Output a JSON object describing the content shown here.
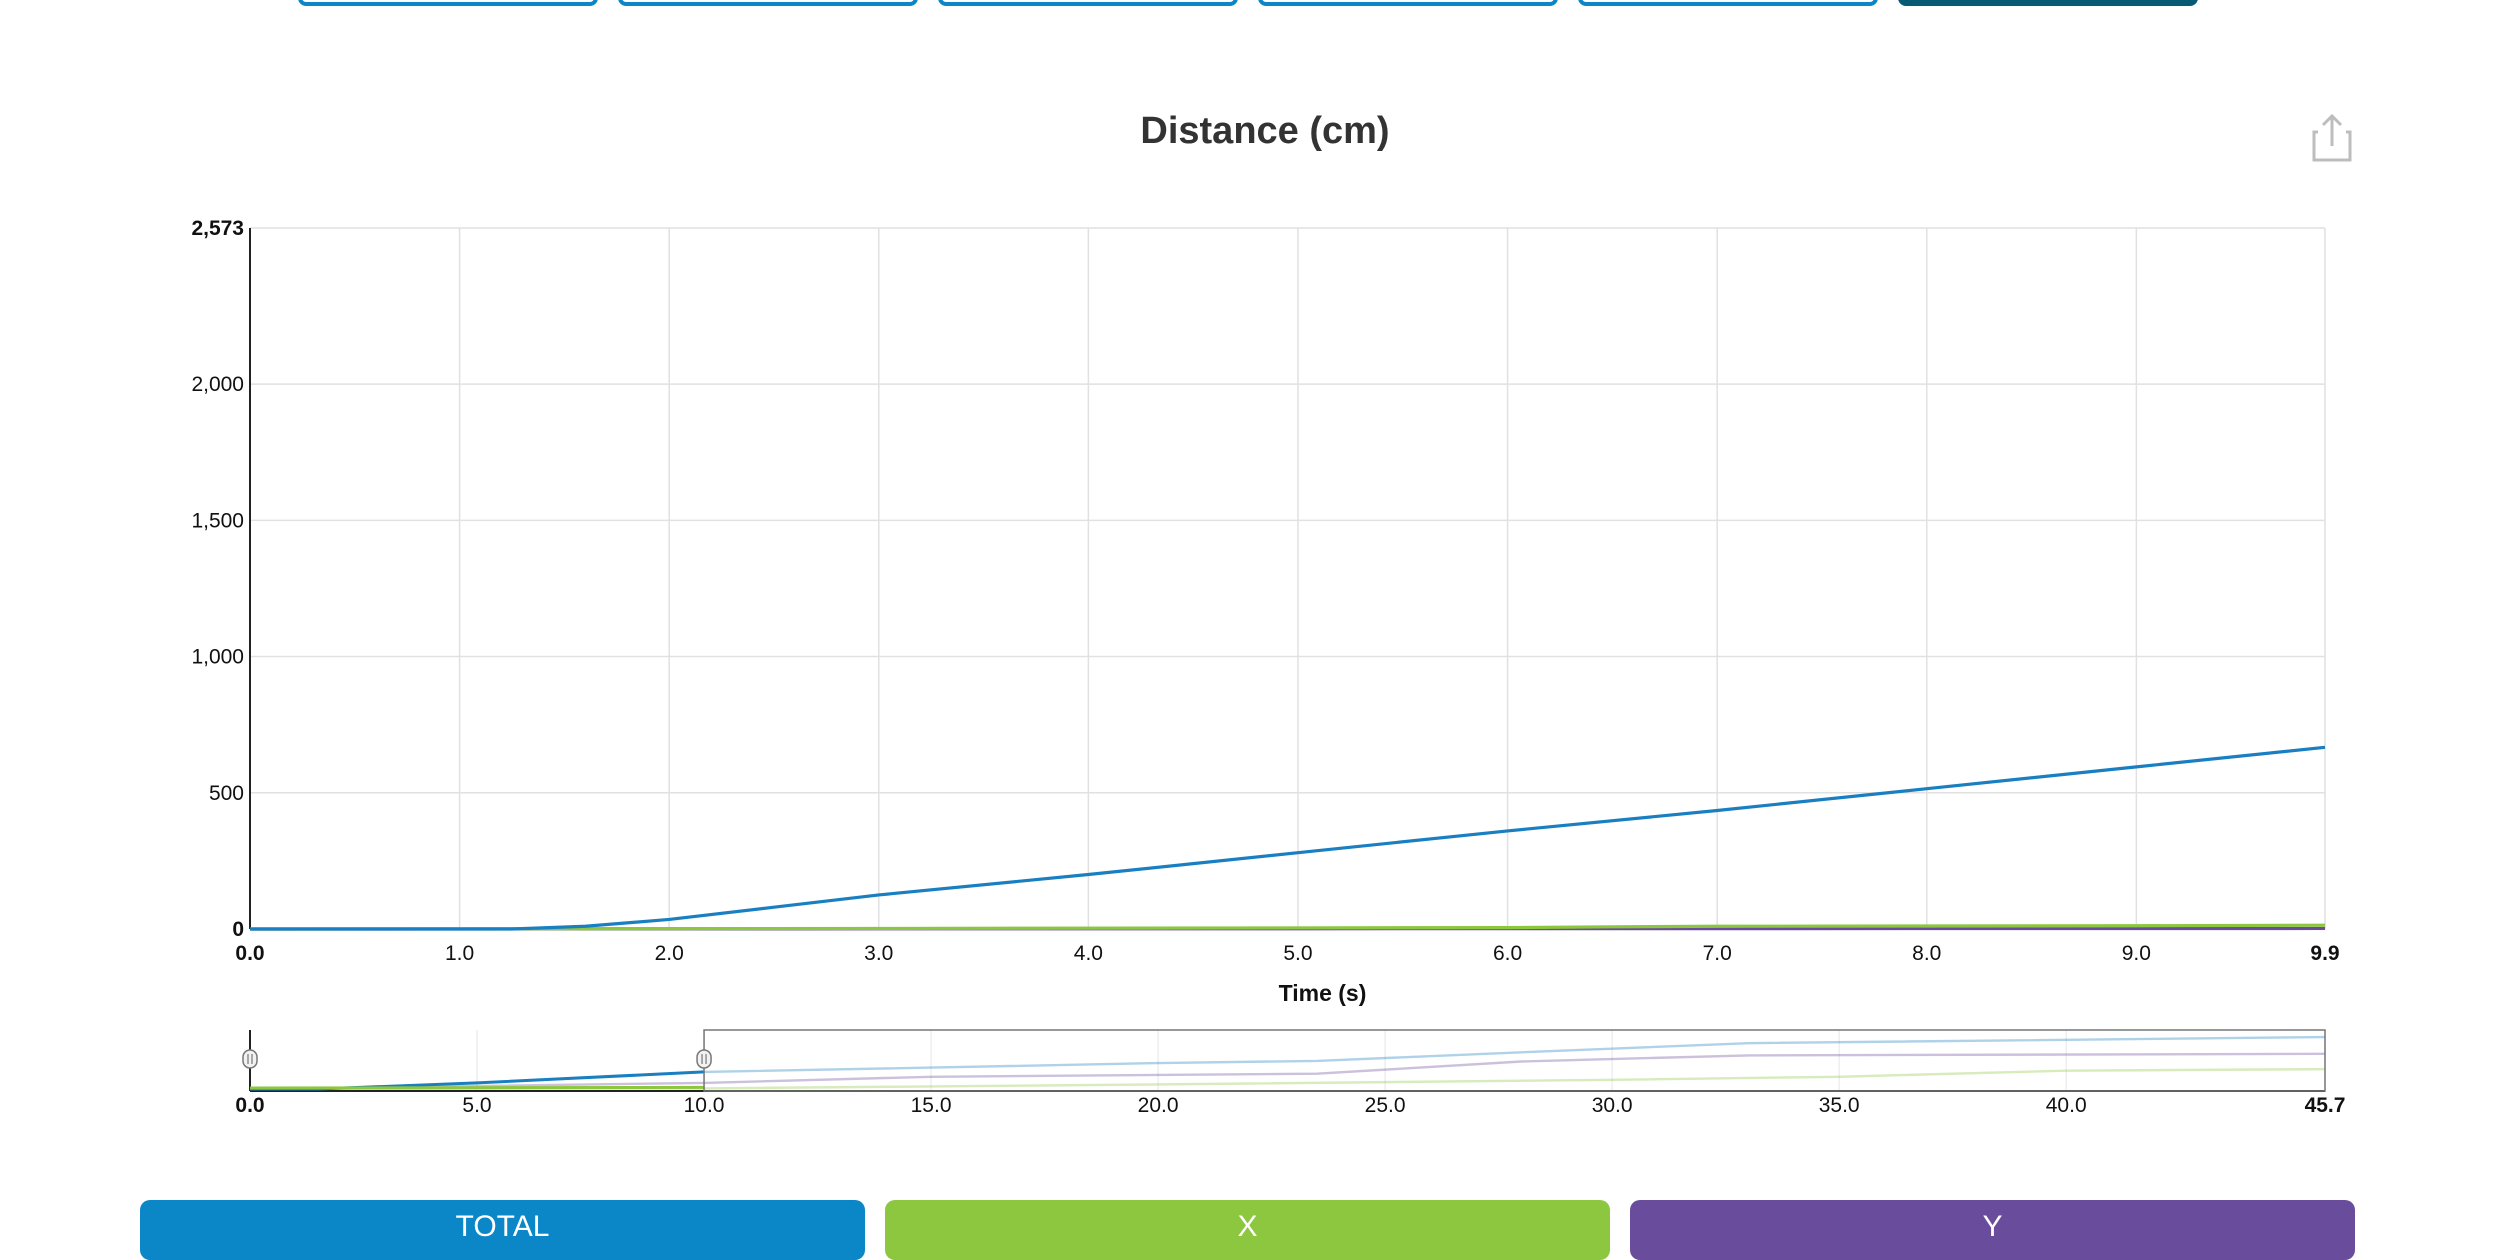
{
  "top_tabs": [
    {
      "label": "",
      "active": false
    },
    {
      "label": "",
      "active": false
    },
    {
      "label": "",
      "active": false
    },
    {
      "label": "",
      "active": false
    },
    {
      "label": "",
      "active": false
    },
    {
      "label": "",
      "active": true
    }
  ],
  "share_icon": "share-icon",
  "chart_data": {
    "type": "line",
    "title": "Distance (cm)",
    "xlabel": "Time (s)",
    "ylabel": "",
    "xlim": [
      0.0,
      9.9
    ],
    "ylim": [
      0,
      2573
    ],
    "x_ticks": [
      "0.0",
      "1.0",
      "2.0",
      "3.0",
      "4.0",
      "5.0",
      "6.0",
      "7.0",
      "8.0",
      "9.0",
      "9.9"
    ],
    "y_ticks": [
      "0",
      "500",
      "1,000",
      "1,500",
      "2,000",
      "2,573"
    ],
    "grid": true,
    "series": [
      {
        "color": "#1a7fc1",
        "x": [
          0.0,
          1.0,
          1.25,
          1.6,
          2.0,
          2.5,
          3.0,
          4.0,
          5.0,
          6.0,
          7.0,
          8.0,
          9.0,
          9.9
        ],
        "y": [
          0,
          0,
          0,
          10,
          35,
          80,
          125,
          200,
          280,
          360,
          435,
          515,
          595,
          667
        ]
      },
      {
        "color": "#8dc63f",
        "x": [
          0.0,
          3.0,
          6.0,
          6.5,
          7.0,
          8.0,
          9.0,
          9.9
        ],
        "y": [
          0,
          2,
          5,
          8,
          10,
          11,
          12,
          14
        ]
      },
      {
        "color": "#6a4c9c",
        "x": [
          0.0,
          5.0,
          9.9
        ],
        "y": [
          0,
          1,
          2
        ]
      }
    ],
    "navigator": {
      "xlim": [
        0.0,
        45.7
      ],
      "x_ticks": [
        "0.0",
        "5.0",
        "10.0",
        "15.0",
        "20.0",
        "25.0",
        "30.0",
        "35.0",
        "40.0",
        "45.7"
      ],
      "selected_range": [
        0.0,
        10.0
      ],
      "series": [
        {
          "color": "#1a7fc1",
          "x": [
            0,
            1.5,
            5,
            10,
            15,
            20,
            23.5,
            28,
            33,
            45.7
          ],
          "y": [
            0,
            0,
            200,
            560,
            700,
            850,
            920,
            1200,
            1500,
            1700
          ]
        },
        {
          "color": "#6a4c9c",
          "x": [
            0,
            10,
            15,
            23.5,
            28,
            33,
            45.7
          ],
          "y": [
            0,
            200,
            400,
            500,
            900,
            1100,
            1150
          ]
        },
        {
          "color": "#8dc63f",
          "x": [
            0,
            10,
            20,
            30,
            35,
            40,
            45.7
          ],
          "y": [
            0,
            20,
            150,
            300,
            400,
            600,
            650
          ]
        }
      ]
    }
  },
  "legend_buttons": [
    {
      "label": "TOTAL",
      "color": "#0b87c8"
    },
    {
      "label": "X",
      "color": "#8dc63f"
    },
    {
      "label": "Y",
      "color": "#6a4c9c"
    }
  ]
}
